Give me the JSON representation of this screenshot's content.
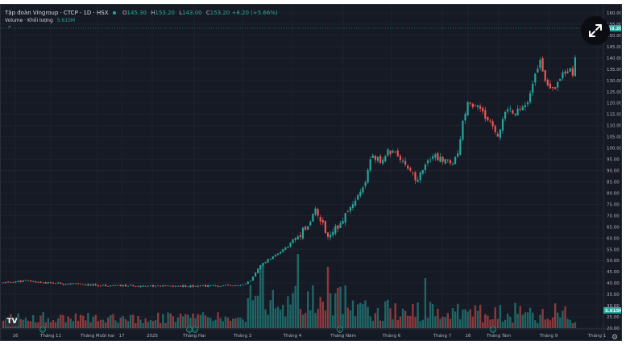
{
  "header": {
    "symbol_title": "Tập đoàn Vingroup · CTCP · 1D · HSX",
    "ohlc": [
      {
        "k": "O",
        "v": "145.30"
      },
      {
        "k": "H",
        "v": "153.20"
      },
      {
        "k": "L",
        "v": "143.00"
      },
      {
        "k": "C",
        "v": "153.20"
      }
    ],
    "change": "+8.20 (+5.66%)"
  },
  "volume_legend": {
    "label": "Volume · Khối lượng",
    "value": "5.615M"
  },
  "collapse_glyph": "⌃",
  "price_axis": {
    "ticks": [
      "160.00",
      "155.00",
      "150.00",
      "145.00",
      "140.00",
      "135.00",
      "130.00",
      "125.00",
      "120.00",
      "115.00",
      "110.00",
      "105.00",
      "100.00",
      "95.00",
      "90.00",
      "85.00",
      "80.00",
      "75.00",
      "70.00",
      "65.00",
      "60.00",
      "55.00",
      "50.00",
      "45.00",
      "40.00",
      "35.00",
      "30.00",
      "25.00",
      "20.00"
    ],
    "last_price": "153.20",
    "last_volume": "5.615M"
  },
  "time_axis": {
    "labels": [
      "16",
      "Tháng 11",
      "Tháng Mười hai",
      "17",
      "2025",
      "Tháng Hai",
      "Tháng 3",
      "Tháng 4",
      "Tháng Năm",
      "Tháng 6",
      "Tháng 7",
      "16",
      "Tháng Tám",
      "Tháng 9",
      "Tháng 1"
    ]
  },
  "event_markers": [
    "D",
    "D",
    "D",
    "E",
    "D"
  ],
  "logo_text": "TV",
  "colors": {
    "up": "#26a69a",
    "down": "#ef5350",
    "bg": "#161a25",
    "text": "#b2b5be"
  },
  "chart_data": {
    "type": "candlestick",
    "title": "Tập đoàn Vingroup · CTCP · 1D · HSX",
    "ylim": [
      20,
      160
    ],
    "price_series_approx": [
      [
        0,
        40
      ],
      [
        30,
        41
      ],
      [
        60,
        40
      ],
      [
        90,
        39.5
      ],
      [
        120,
        39
      ],
      [
        150,
        38.8
      ],
      [
        180,
        38.8
      ],
      [
        210,
        38.6
      ],
      [
        240,
        38.8
      ],
      [
        270,
        38.7
      ],
      [
        300,
        38.9
      ],
      [
        310,
        41
      ],
      [
        320,
        47
      ],
      [
        330,
        50
      ],
      [
        340,
        52
      ],
      [
        355,
        56
      ],
      [
        365,
        60
      ],
      [
        372,
        62
      ],
      [
        380,
        66
      ],
      [
        390,
        72
      ],
      [
        395,
        70
      ],
      [
        400,
        66
      ],
      [
        405,
        60
      ],
      [
        410,
        62
      ],
      [
        420,
        66
      ],
      [
        430,
        72
      ],
      [
        440,
        78
      ],
      [
        450,
        82
      ],
      [
        455,
        88
      ],
      [
        460,
        98
      ],
      [
        470,
        94
      ],
      [
        480,
        98
      ],
      [
        490,
        98
      ],
      [
        500,
        95
      ],
      [
        505,
        92
      ],
      [
        510,
        88
      ],
      [
        515,
        86
      ],
      [
        520,
        88
      ],
      [
        530,
        95
      ],
      [
        540,
        96
      ],
      [
        550,
        94
      ],
      [
        560,
        92
      ],
      [
        565,
        95
      ],
      [
        570,
        104
      ],
      [
        575,
        114
      ],
      [
        580,
        120
      ],
      [
        585,
        118
      ],
      [
        590,
        120
      ],
      [
        598,
        116
      ],
      [
        605,
        112
      ],
      [
        612,
        108
      ],
      [
        618,
        106
      ],
      [
        625,
        117
      ],
      [
        635,
        116
      ],
      [
        645,
        118
      ],
      [
        655,
        122
      ],
      [
        660,
        128
      ],
      [
        665,
        134
      ],
      [
        670,
        138
      ],
      [
        675,
        130
      ],
      [
        680,
        128
      ],
      [
        688,
        126
      ],
      [
        695,
        132
      ],
      [
        705,
        136
      ],
      [
        710,
        132
      ],
      [
        715,
        145
      ],
      [
        718,
        153
      ]
    ],
    "volume_series": "approximate per-day volume shown as green/red bars under price"
  }
}
